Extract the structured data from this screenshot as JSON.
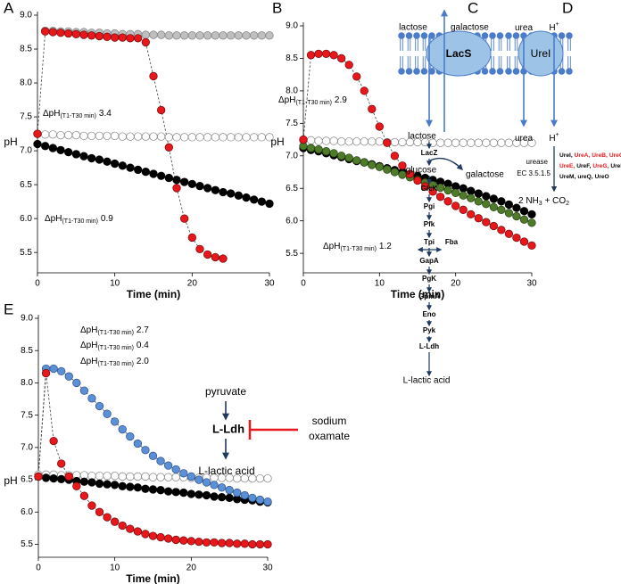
{
  "chart_data": [
    {
      "type": "line",
      "panel": "A",
      "y_label": "pH",
      "x_label": "Time (min)",
      "x": [
        0,
        1,
        2,
        3,
        4,
        5,
        6,
        7,
        8,
        9,
        10,
        11,
        12,
        13,
        14,
        15,
        16,
        17,
        18,
        19,
        20,
        21,
        22,
        23,
        24,
        25,
        26,
        27,
        28,
        29,
        30
      ],
      "xlim": [
        0,
        30
      ],
      "xticks": [
        0,
        10,
        20,
        30
      ],
      "ylim": [
        5.2,
        9.0
      ],
      "yticks": [
        5.5,
        {
          "value": 6,
          "label": "6.0"
        },
        6.5,
        {
          "value": 7,
          "label": "7.0"
        },
        7.5,
        {
          "value": 8,
          "label": "8.0"
        },
        8.5,
        {
          "value": 9,
          "label": "9.0"
        }
      ],
      "series": [
        {
          "color": "#ffffff",
          "edgecolor": "#808080",
          "values": [
            7.25,
            7.24,
            7.24,
            7.23,
            7.23,
            7.23,
            7.22,
            7.22,
            7.22,
            7.22,
            7.22,
            7.21,
            7.21,
            7.21,
            7.21,
            7.21,
            7.21,
            7.2,
            7.2,
            7.2,
            7.2,
            7.2,
            7.2,
            7.2,
            7.2,
            7.2,
            7.2,
            7.2,
            7.2,
            7.2,
            7.2
          ]
        },
        {
          "color": "#bfbfbf",
          "edgecolor": "#7f7f7f",
          "values": [
            null,
            8.77,
            8.77,
            8.76,
            8.76,
            8.75,
            8.75,
            8.74,
            8.74,
            8.73,
            8.73,
            8.72,
            8.72,
            8.72,
            8.71,
            8.71,
            8.71,
            8.7,
            8.7,
            8.7,
            8.7,
            8.7,
            8.7,
            8.7,
            8.7,
            8.7,
            8.7,
            8.7,
            8.7,
            8.7,
            8.7
          ]
        },
        {
          "color": "#000000",
          "edgecolor": "#000000",
          "values": [
            7.1,
            7.07,
            7.04,
            7.01,
            6.98,
            6.95,
            6.92,
            6.89,
            6.87,
            6.84,
            6.81,
            6.78,
            6.75,
            6.72,
            6.69,
            6.66,
            6.63,
            6.6,
            6.57,
            6.54,
            6.51,
            6.48,
            6.45,
            6.42,
            6.39,
            6.37,
            6.34,
            6.31,
            6.28,
            6.25,
            6.22
          ]
        },
        {
          "color": "#e8171b",
          "edgecolor": "#6b0a0a",
          "values": [
            7.25,
            8.76,
            8.75,
            8.74,
            8.73,
            8.72,
            8.71,
            8.7,
            8.69,
            8.68,
            8.67,
            8.67,
            8.66,
            8.66,
            8.6,
            8.1,
            7.6,
            7.05,
            6.45,
            6.0,
            5.72,
            5.55,
            5.47,
            5.43,
            5.41,
            null,
            null,
            null,
            null,
            null,
            null
          ]
        }
      ],
      "annotations": [
        {
          "text": "ΔpH",
          "sub": "(T1-T30 min)",
          "value": "3.4",
          "color": "#e8171b"
        },
        {
          "text": "ΔpH",
          "sub": "(T1-T30 min)",
          "value": "0.9",
          "color": "#000000"
        }
      ]
    },
    {
      "type": "line",
      "panel": "B",
      "y_label": "pH",
      "x_label": "Time (min)",
      "x": [
        0,
        1,
        2,
        3,
        4,
        5,
        6,
        7,
        8,
        9,
        10,
        11,
        12,
        13,
        14,
        15,
        16,
        17,
        18,
        19,
        20,
        21,
        22,
        23,
        24,
        25,
        26,
        27,
        28,
        29,
        30
      ],
      "xlim": [
        0,
        30
      ],
      "xticks": [
        0,
        10,
        20,
        30
      ],
      "ylim": [
        5.2,
        9.0
      ],
      "yticks": [
        5.5,
        {
          "value": 6,
          "label": "6.0"
        },
        6.5,
        {
          "value": 7,
          "label": "7.0"
        },
        7.5,
        {
          "value": 8,
          "label": "8.0"
        },
        8.5,
        {
          "value": 9,
          "label": "9.0"
        }
      ],
      "series": [
        {
          "color": "#ffffff",
          "edgecolor": "#808080",
          "values": [
            7.24,
            7.24,
            7.23,
            7.23,
            7.23,
            7.22,
            7.22,
            7.22,
            7.22,
            7.22,
            7.22,
            7.21,
            7.21,
            7.21,
            7.21,
            7.21,
            7.21,
            7.2,
            7.2,
            7.2,
            7.2,
            7.2,
            7.2,
            7.2,
            7.2,
            7.2,
            7.2,
            7.2,
            7.2,
            7.2,
            7.2
          ]
        },
        {
          "color": "#000000",
          "edgecolor": "#000000",
          "values": [
            7.12,
            7.09,
            7.07,
            7.04,
            7.01,
            6.98,
            6.95,
            6.92,
            6.9,
            6.87,
            6.84,
            6.81,
            6.78,
            6.75,
            6.72,
            6.69,
            6.66,
            6.63,
            6.6,
            6.57,
            6.53,
            6.5,
            6.46,
            6.42,
            6.38,
            6.34,
            6.3,
            6.25,
            6.2,
            6.15,
            6.1
          ]
        },
        {
          "color": "#4e7a2a",
          "edgecolor": "#24400f",
          "values": [
            7.15,
            7.12,
            7.1,
            7.07,
            7.04,
            7.0,
            6.97,
            6.93,
            6.9,
            6.86,
            6.83,
            6.79,
            6.75,
            6.71,
            6.67,
            6.63,
            6.59,
            6.55,
            6.51,
            6.47,
            6.43,
            6.39,
            6.35,
            6.3,
            6.26,
            6.21,
            6.17,
            6.12,
            6.07,
            6.02,
            5.97
          ]
        },
        {
          "color": "#e8171b",
          "edgecolor": "#6b0a0a",
          "values": [
            7.25,
            8.55,
            8.57,
            8.57,
            8.55,
            8.5,
            8.4,
            8.22,
            8.0,
            7.72,
            7.45,
            7.2,
            7.0,
            6.85,
            6.72,
            6.62,
            6.53,
            6.45,
            6.37,
            6.3,
            6.23,
            6.17,
            6.1,
            6.04,
            5.98,
            5.92,
            5.86,
            5.8,
            5.74,
            5.68,
            5.62
          ]
        }
      ],
      "annotations": [
        {
          "text": "ΔpH",
          "sub": "(T1-T30 min)",
          "value": "2.9",
          "color": "#e8171b"
        },
        {
          "text": "ΔpH",
          "sub": "(T1-T30 min)",
          "value": "1.2",
          "color": "#3f6b1f"
        }
      ]
    },
    {
      "type": "line",
      "panel": "E",
      "y_label": "pH",
      "x_label": "Time (min)",
      "x": [
        0,
        1,
        2,
        3,
        4,
        5,
        6,
        7,
        8,
        9,
        10,
        11,
        12,
        13,
        14,
        15,
        16,
        17,
        18,
        19,
        20,
        21,
        22,
        23,
        24,
        25,
        26,
        27,
        28,
        29,
        30
      ],
      "xlim": [
        0,
        30
      ],
      "xticks": [
        0,
        10,
        20,
        30
      ],
      "ylim": [
        5.3,
        9.0
      ],
      "yticks": [
        5.5,
        {
          "value": 6,
          "label": "6.0"
        },
        6.5,
        {
          "value": 7,
          "label": "7.0"
        },
        7.5,
        {
          "value": 8,
          "label": "8.0"
        },
        8.5,
        {
          "value": 9,
          "label": "9.0"
        }
      ],
      "series": [
        {
          "color": "#ffffff",
          "edgecolor": "#808080",
          "values": [
            6.58,
            6.58,
            6.58,
            6.57,
            6.57,
            6.57,
            6.57,
            6.56,
            6.56,
            6.56,
            6.56,
            6.55,
            6.55,
            6.55,
            6.55,
            6.54,
            6.54,
            6.54,
            6.54,
            6.54,
            6.53,
            6.53,
            6.53,
            6.53,
            6.53,
            6.53,
            6.52,
            6.52,
            6.52,
            6.52,
            6.52
          ]
        },
        {
          "color": "#000000",
          "edgecolor": "#000000",
          "values": [
            6.55,
            6.53,
            6.52,
            6.51,
            6.5,
            6.48,
            6.47,
            6.46,
            6.44,
            6.43,
            6.42,
            6.4,
            6.39,
            6.38,
            6.36,
            6.35,
            6.34,
            6.32,
            6.31,
            6.3,
            6.28,
            6.27,
            6.26,
            6.24,
            6.23,
            6.22,
            6.2,
            6.19,
            6.18,
            6.16,
            6.15
          ]
        },
        {
          "color": "#5b8fd6",
          "edgecolor": "#2a4f85",
          "values": [
            6.55,
            8.22,
            8.22,
            8.18,
            8.1,
            8.0,
            7.88,
            7.76,
            7.64,
            7.52,
            7.4,
            7.28,
            7.17,
            7.06,
            6.96,
            6.87,
            6.79,
            6.72,
            6.66,
            6.6,
            6.55,
            6.5,
            6.46,
            6.42,
            6.38,
            6.34,
            6.3,
            6.26,
            6.22,
            6.19,
            6.16
          ]
        },
        {
          "color": "#e8171b",
          "edgecolor": "#6b0a0a",
          "values": [
            6.55,
            8.15,
            7.1,
            6.75,
            6.55,
            6.4,
            6.25,
            6.1,
            6.0,
            5.92,
            5.85,
            5.79,
            5.74,
            5.7,
            5.66,
            5.63,
            5.61,
            5.59,
            5.57,
            5.56,
            5.55,
            5.54,
            5.53,
            5.53,
            5.52,
            5.52,
            5.51,
            5.51,
            5.5,
            5.5,
            5.5
          ]
        }
      ],
      "annotations": [
        {
          "text": "ΔpH",
          "sub": "(T1-T30 min)",
          "value": "2.7",
          "color": "#e8171b"
        },
        {
          "text": "ΔpH",
          "sub": "(T1-T30 min)",
          "value": "0.4",
          "color": "#000000"
        },
        {
          "text": "ΔpH",
          "sub": "(T1-T30 min)",
          "value": "2.0",
          "color": "#8c8c8c"
        }
      ]
    }
  ],
  "diagram_c": {
    "panel": "C",
    "transporter": "LacS",
    "outside": [
      "lactose",
      "galactose"
    ],
    "inside": [
      "lactose",
      "glucose",
      "galactose"
    ],
    "enzymes": [
      "LacZ",
      "GlcK",
      "Pgi",
      "Pfk",
      "Tpi",
      "Fba",
      "GapA",
      "PgK",
      "GpmA",
      "Eno",
      "Pyk",
      "L-Ldh"
    ],
    "product": "L-lactic acid"
  },
  "diagram_d": {
    "panel": "D",
    "transporter": "UreI",
    "outside": [
      {
        "text": "urea"
      },
      {
        "text": "H",
        "sup": "+"
      }
    ],
    "inside": [
      {
        "text": "urea"
      },
      {
        "text": "H",
        "sup": "+"
      }
    ],
    "enzyme": [
      "urease",
      "EC 3.5.1.5"
    ],
    "gene_lines": [
      [
        {
          "text": "UreI,",
          "color": "#000000"
        },
        {
          "text": "UreA,",
          "color": "#e8171b"
        },
        {
          "text": "UreB,",
          "color": "#e8171b"
        },
        {
          "text": "UreC,",
          "color": "#e8171b"
        }
      ],
      [
        {
          "text": "UreE,",
          "color": "#e8171b"
        },
        {
          "text": "UreF,",
          "color": "#000000"
        },
        {
          "text": "UreG,",
          "color": "#e8171b"
        },
        {
          "text": "UreD,",
          "color": "#000000"
        }
      ],
      [
        {
          "text": "UreM,",
          "color": "#000000"
        },
        {
          "text": "ureQ,",
          "color": "#000000"
        },
        {
          "text": "UreO",
          "color": "#000000"
        }
      ]
    ],
    "product": [
      {
        "text": "2 NH"
      },
      {
        "sub": "3"
      },
      {
        "text": " + CO"
      },
      {
        "sub": "2"
      }
    ]
  },
  "diagram_e": {
    "substrate": "pyruvate",
    "enzyme": "L-Ldh",
    "inhibitor": [
      "sodium",
      "oxamate"
    ],
    "product": "L-lactic acid"
  }
}
